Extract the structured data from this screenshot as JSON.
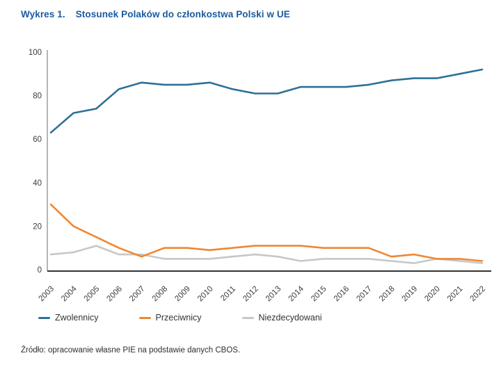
{
  "title": {
    "prefix": "Wykres 1.",
    "text": "Stosunek Polaków do członkostwa Polski w UE"
  },
  "source": "Źródło: opracowanie własne PIE na podstawie danych CBOS.",
  "colors": {
    "title": "#1b5a9e",
    "axis_left": "#6b6b6b",
    "axis_bottom": "#333333",
    "tick_text": "#3c3c3c",
    "supporters": "#2d7196",
    "opponents": "#ef8733",
    "undecided": "#c7c7c7"
  },
  "chart_data": {
    "type": "line",
    "title": "Stosunek Polaków do członkostwa Polski w UE",
    "categories": [
      "2003",
      "2004",
      "2005",
      "2006",
      "2007",
      "2008",
      "2009",
      "2010",
      "2011",
      "2012",
      "2013",
      "2014",
      "2015",
      "2016",
      "2017",
      "2018",
      "2019",
      "2020",
      "2021",
      "2022"
    ],
    "series": [
      {
        "name": "Zwolennicy",
        "color": "#2d7196",
        "values": [
          63,
          72,
          74,
          83,
          86,
          85,
          85,
          86,
          83,
          81,
          81,
          84,
          84,
          84,
          85,
          87,
          88,
          88,
          90,
          92
        ]
      },
      {
        "name": "Przeciwnicy",
        "color": "#ef8733",
        "values": [
          30,
          20,
          15,
          10,
          6,
          10,
          10,
          9,
          10,
          11,
          11,
          11,
          10,
          10,
          10,
          6,
          7,
          5,
          5,
          4
        ]
      },
      {
        "name": "Niezdecydowani",
        "color": "#c7c7c7",
        "values": [
          7,
          8,
          11,
          7,
          7,
          5,
          5,
          5,
          6,
          7,
          6,
          4,
          5,
          5,
          5,
          4,
          3,
          5,
          4,
          3
        ]
      }
    ],
    "xlabel": "",
    "ylabel": "",
    "ylim": [
      0,
      100
    ],
    "yticks": [
      0,
      20,
      40,
      60,
      80,
      100
    ],
    "grid": false,
    "legend_position": "bottom"
  }
}
